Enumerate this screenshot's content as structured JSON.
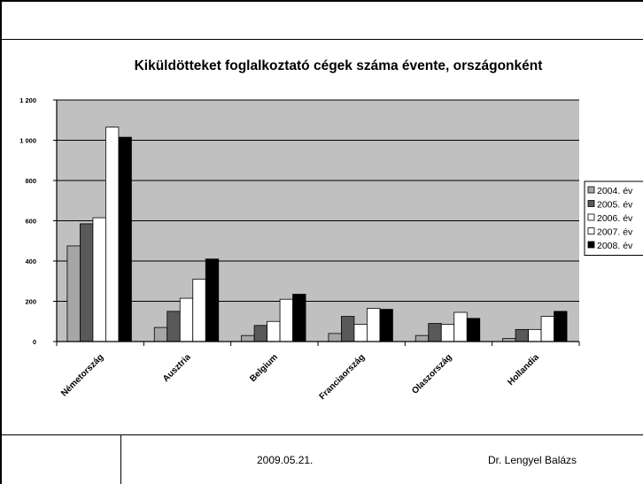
{
  "slide": {
    "footer_date": "2009.05.21.",
    "footer_author": "Dr. Lengyel Balázs"
  },
  "chart_data": {
    "type": "bar",
    "title": "Kiküldötteket foglalkoztató cégek száma évente, országonként",
    "xlabel": "",
    "ylabel": "",
    "categories": [
      "Németország",
      "Ausztria",
      "Belgium",
      "Franciaország",
      "Olaszország",
      "Hollandia"
    ],
    "ylim": [
      0,
      1200
    ],
    "yticks": [
      0,
      200,
      400,
      600,
      800,
      1000,
      1200
    ],
    "ytick_labels": [
      "0",
      "200",
      "400",
      "600",
      "800",
      "1 000",
      "1 200"
    ],
    "grid": true,
    "plot_background": "#c0c0c0",
    "legend_position": "right",
    "series": [
      {
        "name": "2004. év",
        "color": "#a6a6a6",
        "values": [
          475,
          70,
          30,
          40,
          30,
          15
        ]
      },
      {
        "name": "2005. év",
        "color": "#595959",
        "values": [
          585,
          150,
          80,
          125,
          90,
          60
        ]
      },
      {
        "name": "2006. év",
        "color": "#ffffff",
        "values": [
          615,
          215,
          100,
          85,
          85,
          60
        ]
      },
      {
        "name": "2007. év",
        "color": "#ffffff",
        "values": [
          1065,
          310,
          210,
          165,
          145,
          125
        ]
      },
      {
        "name": "2008. év",
        "color": "#000000",
        "values": [
          1015,
          410,
          235,
          160,
          115,
          150
        ]
      }
    ]
  }
}
